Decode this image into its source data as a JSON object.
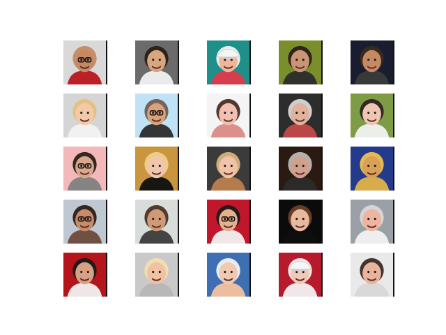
{
  "grid": {
    "rows": 5,
    "cols": 5,
    "tiles": [
      {
        "bg": "#d9d9d9",
        "skin": "#c58a64",
        "hair": "#c58a64",
        "accent": "#b8161c",
        "glasses": true,
        "cap": false
      },
      {
        "bg": "#6b6b6b",
        "skin": "#d7a67e",
        "hair": "#2b1f19",
        "accent": "#f2f2f2",
        "glasses": false,
        "cap": false
      },
      {
        "bg": "#1f8f8a",
        "skin": "#f0b59a",
        "hair": "#f2f2f2",
        "accent": "#e23a4a",
        "glasses": false,
        "cap": true
      },
      {
        "bg": "#7a8f2c",
        "skin": "#c99574",
        "hair": "#2b1f19",
        "accent": "#2c2c2c",
        "glasses": false,
        "cap": false
      },
      {
        "bg": "#1a1d2f",
        "skin": "#c68a63",
        "hair": "#3a2a22",
        "accent": "#3b3b3b",
        "glasses": false,
        "cap": false
      },
      {
        "bg": "#d5d5d5",
        "skin": "#f2caa9",
        "hair": "#e6c07a",
        "accent": "#f2f2f2",
        "glasses": false,
        "cap": false
      },
      {
        "bg": "#bfe2f5",
        "skin": "#d9a27a",
        "hair": "#6f5d56",
        "accent": "#2b2b2b",
        "glasses": true,
        "cap": false
      },
      {
        "bg": "#f4f4f4",
        "skin": "#f1c0b2",
        "hair": "#4a2c24",
        "accent": "#d98a86",
        "glasses": false,
        "cap": false
      },
      {
        "bg": "#2d2d2d",
        "skin": "#e2b29c",
        "hair": "#d7d7d7",
        "accent": "#c24a4a",
        "glasses": false,
        "cap": false
      },
      {
        "bg": "#7e9b45",
        "skin": "#f0c6b3",
        "hair": "#2e2422",
        "accent": "#f2f2f2",
        "glasses": false,
        "cap": false
      },
      {
        "bg": "#f3b8ba",
        "skin": "#d9a88c",
        "hair": "#2b1f19",
        "accent": "#7f7f7f",
        "glasses": true,
        "cap": false
      },
      {
        "bg": "#c9963f",
        "skin": "#f0c7ad",
        "hair": "#efcf8b",
        "accent": "#0f0f0f",
        "glasses": false,
        "cap": false
      },
      {
        "bg": "#3b3b3b",
        "skin": "#f0c3a8",
        "hair": "#d6b27a",
        "accent": "#ba7e4e",
        "glasses": false,
        "cap": false
      },
      {
        "bg": "#2a1a12",
        "skin": "#d0a08d",
        "hair": "#b8b8b8",
        "accent": "#2b2b2b",
        "glasses": false,
        "cap": false
      },
      {
        "bg": "#243a8a",
        "skin": "#d9a057",
        "hair": "#f1c24a",
        "accent": "#e2b24a",
        "glasses": false,
        "cap": false
      },
      {
        "bg": "#bfc7d1",
        "skin": "#c98c6b",
        "hair": "#2b1f19",
        "accent": "#6b4a3b",
        "glasses": true,
        "cap": false
      },
      {
        "bg": "#d8ddd9",
        "skin": "#d09a76",
        "hair": "#4a3125",
        "accent": "#3b3b3b",
        "glasses": false,
        "cap": false
      },
      {
        "bg": "#c0172a",
        "skin": "#e6b08d",
        "hair": "#1b1b1b",
        "accent": "#f2f2f2",
        "glasses": true,
        "cap": false
      },
      {
        "bg": "#0b0b0b",
        "skin": "#e9b99f",
        "hair": "#6b3f28",
        "accent": "#0f0f0f",
        "glasses": false,
        "cap": false
      },
      {
        "bg": "#9aa0a6",
        "skin": "#efb4a0",
        "hair": "#d8d8d8",
        "accent": "#f2f2f2",
        "glasses": false,
        "cap": false
      },
      {
        "bg": "#b5141b",
        "skin": "#d9a183",
        "hair": "#1b1b1b",
        "accent": "#f2f2f2",
        "glasses": false,
        "cap": false
      },
      {
        "bg": "#c9c9c9",
        "skin": "#f0c1a2",
        "hair": "#f2dfae",
        "accent": "#b7b7b7",
        "glasses": false,
        "cap": false
      },
      {
        "bg": "#3f6fb3",
        "skin": "#f0c9b2",
        "hair": "#f2f2f2",
        "accent": "#f5c29f",
        "glasses": false,
        "cap": false
      },
      {
        "bg": "#b61a2c",
        "skin": "#f1c9b6",
        "hair": "#f2f2f2",
        "accent": "#f2f2f2",
        "glasses": false,
        "cap": true
      },
      {
        "bg": "#e9e9e9",
        "skin": "#e9b49b",
        "hair": "#3a2a22",
        "accent": "#d8d8d8",
        "glasses": false,
        "cap": false
      }
    ]
  }
}
